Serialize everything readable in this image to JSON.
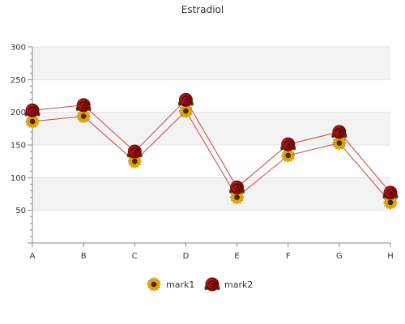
{
  "chart_data": {
    "type": "line",
    "title": "Estradiol",
    "categories": [
      "A",
      "B",
      "C",
      "D",
      "E",
      "F",
      "G",
      "H"
    ],
    "ylim": [
      0,
      300
    ],
    "yticks": [
      50,
      100,
      150,
      200,
      250,
      300
    ],
    "grid": true,
    "legend_position": "bottom",
    "series": [
      {
        "name": "mark1",
        "values": [
          186,
          194,
          125,
          202,
          70,
          134,
          153,
          62
        ],
        "color": "#cc4444",
        "marker": "sunflower-icon"
      },
      {
        "name": "mark2",
        "values": [
          203,
          211,
          140,
          219,
          85,
          151,
          170,
          77
        ],
        "color": "#cc4444",
        "marker": "rose-icon"
      }
    ]
  }
}
